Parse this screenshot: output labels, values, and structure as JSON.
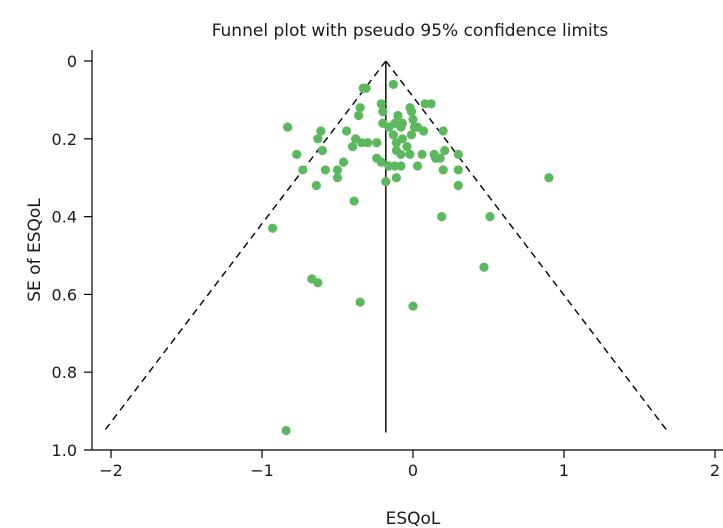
{
  "chart_data": {
    "type": "scatter",
    "title": "Funnel plot with pseudo 95% confidence limits",
    "xlabel": "ESQoL",
    "ylabel": "SE of ESQoL",
    "xlim": [
      -2.1,
      2.0
    ],
    "ylim": [
      1.0,
      0.0
    ],
    "y_inverted": true,
    "x_ticks": [
      -2,
      -1,
      0,
      1,
      2
    ],
    "x_tick_labels": [
      "−2",
      "−1",
      "0",
      "1",
      "2"
    ],
    "y_ticks": [
      0,
      0.2,
      0.4,
      0.6,
      0.8,
      1.0
    ],
    "y_tick_labels": [
      "0",
      "0.2",
      "0.4",
      "0.6",
      "0.8",
      "1.0"
    ],
    "grid": false,
    "pooled_estimate": -0.18,
    "funnel_max_se": 0.955,
    "colors": {
      "points": "#5cb85c",
      "lines": "#000000"
    },
    "series": [
      {
        "points": [
          [
            -0.13,
            0.06
          ],
          [
            -0.31,
            0.07
          ],
          [
            -0.33,
            0.07
          ],
          [
            0.08,
            0.11
          ],
          [
            0.12,
            0.11
          ],
          [
            -0.21,
            0.11
          ],
          [
            -0.02,
            0.12
          ],
          [
            -0.35,
            0.12
          ],
          [
            -0.01,
            0.13
          ],
          [
            -0.2,
            0.13
          ],
          [
            -0.1,
            0.14
          ],
          [
            -0.36,
            0.14
          ],
          [
            0.0,
            0.15
          ],
          [
            -0.12,
            0.16
          ],
          [
            -0.07,
            0.16
          ],
          [
            -0.2,
            0.16
          ],
          [
            -0.16,
            0.17
          ],
          [
            0.01,
            0.17
          ],
          [
            0.03,
            0.17
          ],
          [
            -0.08,
            0.17
          ],
          [
            -0.83,
            0.17
          ],
          [
            -0.44,
            0.18
          ],
          [
            -0.61,
            0.18
          ],
          [
            0.07,
            0.18
          ],
          [
            0.2,
            0.18
          ],
          [
            -0.13,
            0.19
          ],
          [
            -0.01,
            0.19
          ],
          [
            -0.63,
            0.2
          ],
          [
            -0.38,
            0.2
          ],
          [
            -0.07,
            0.2
          ],
          [
            -0.34,
            0.21
          ],
          [
            -0.24,
            0.21
          ],
          [
            -0.3,
            0.21
          ],
          [
            -0.11,
            0.21
          ],
          [
            -0.4,
            0.22
          ],
          [
            -0.04,
            0.22
          ],
          [
            -0.6,
            0.23
          ],
          [
            -0.11,
            0.23
          ],
          [
            0.21,
            0.23
          ],
          [
            -0.08,
            0.24
          ],
          [
            0.06,
            0.24
          ],
          [
            -0.77,
            0.24
          ],
          [
            0.14,
            0.24
          ],
          [
            -0.02,
            0.24
          ],
          [
            0.3,
            0.24
          ],
          [
            0.15,
            0.25
          ],
          [
            -0.24,
            0.25
          ],
          [
            0.18,
            0.25
          ],
          [
            -0.21,
            0.26
          ],
          [
            -0.46,
            0.26
          ],
          [
            -0.16,
            0.27
          ],
          [
            -0.12,
            0.27
          ],
          [
            -0.08,
            0.27
          ],
          [
            0.03,
            0.27
          ],
          [
            -0.73,
            0.28
          ],
          [
            -0.58,
            0.28
          ],
          [
            -0.5,
            0.28
          ],
          [
            0.2,
            0.28
          ],
          [
            0.3,
            0.28
          ],
          [
            -0.5,
            0.3
          ],
          [
            -0.11,
            0.3
          ],
          [
            0.9,
            0.3
          ],
          [
            -0.18,
            0.31
          ],
          [
            -0.64,
            0.32
          ],
          [
            0.3,
            0.32
          ],
          [
            -0.39,
            0.36
          ],
          [
            0.19,
            0.4
          ],
          [
            0.51,
            0.4
          ],
          [
            -0.93,
            0.43
          ],
          [
            0.47,
            0.53
          ],
          [
            -0.67,
            0.56
          ],
          [
            -0.63,
            0.57
          ],
          [
            -0.35,
            0.62
          ],
          [
            0.0,
            0.63
          ],
          [
            -0.84,
            0.95
          ]
        ]
      }
    ]
  }
}
